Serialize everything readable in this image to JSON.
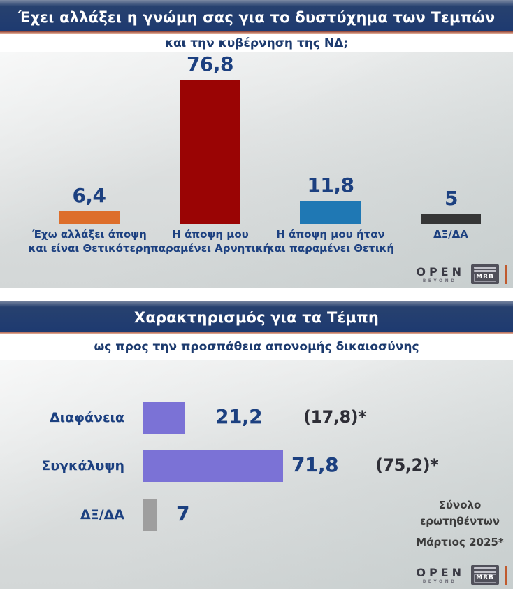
{
  "colors": {
    "header_bg": "#1E3A70",
    "accent_line_top": "#8C3C30",
    "accent_line_bottom": "#E9B49C",
    "value_text": "#1C4080",
    "subtitle_text": "#1C3A6E",
    "prev_text": "#2E2E36",
    "footnote_text": "#3C3C3C",
    "bar_orange": "#DD6E2B",
    "bar_red": "#9A0404",
    "bar_blue": "#1F78B4",
    "bar_dark": "#363636",
    "bar_purple": "#7B72D6",
    "bar_gray": "#9E9E9E"
  },
  "branding": {
    "channel": "OPEN",
    "tagline": "BEYOND",
    "pollster": "MRB"
  },
  "chart_data": [
    {
      "type": "bar",
      "title": "Έχει αλλάξει η γνώμη σας για το δυστύχημα των Τεμπών",
      "subtitle": "και την κυβέρνηση της ΝΔ;",
      "categories": [
        "Έχω αλλάξει άποψη και είναι Θετικότερη",
        "Η άποψη μου παραμένει Αρνητική",
        "Η άποψη μου ήταν και παραμένει Θετική",
        "ΔΞ/ΔΑ"
      ],
      "category_lines": [
        [
          "Έχω αλλάξει άποψη",
          "και είναι Θετικότερη"
        ],
        [
          "Η άποψη μου",
          "παραμένει Αρνητική"
        ],
        [
          "Η άποψη μου ήταν",
          "και παραμένει Θετική"
        ],
        [
          "ΔΞ/ΔΑ"
        ]
      ],
      "values": [
        6.4,
        76.8,
        11.8,
        5
      ],
      "value_labels": [
        "6,4",
        "76,8",
        "11,8",
        "5"
      ],
      "colors": [
        "#DD6E2B",
        "#9A0404",
        "#1F78B4",
        "#363636"
      ],
      "unit": "percent",
      "ylim": [
        0,
        80
      ],
      "grid": false,
      "legend": "none"
    },
    {
      "type": "bar",
      "orientation": "horizontal",
      "title": "Χαρακτηρισμός για τα Τέμπη",
      "subtitle": "ως προς την προσπάθεια απονομής δικαιοσύνης",
      "categories": [
        "Διαφάνεια",
        "Συγκάλυψη",
        "ΔΞ/ΔΑ"
      ],
      "values": [
        21.2,
        71.8,
        7
      ],
      "value_labels": [
        "21,2",
        "71,8",
        "7"
      ],
      "previous_values": [
        17.8,
        75.2,
        null
      ],
      "previous_labels": [
        "(17,8)*",
        "(75,2)*"
      ],
      "colors": [
        "#7B72D6",
        "#7B72D6",
        "#9E9E9E"
      ],
      "unit": "percent",
      "xlim": [
        0,
        80
      ],
      "grid": false,
      "legend": "none",
      "footnote": "Σύνολο ερωτηθέντων Μάρτιος 2025*",
      "footnote_lines": [
        "Σύνολο",
        "ερωτηθέντων",
        "Μάρτιος 2025*"
      ]
    }
  ]
}
